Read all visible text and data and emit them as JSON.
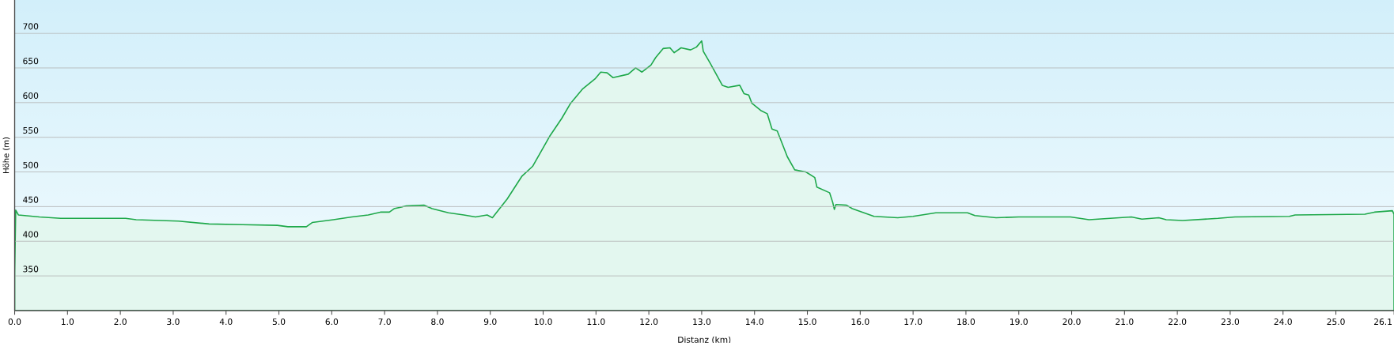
{
  "chart_data": {
    "type": "area",
    "xlabel": "Distanz  (km)",
    "ylabel": "Höhe (m)",
    "x": [
      0,
      0.02,
      0.07,
      0.47,
      0.87,
      1.44,
      2.1,
      2.3,
      3.1,
      3.68,
      4.31,
      4.97,
      5.17,
      5.52,
      5.63,
      6.03,
      6.38,
      6.69,
      6.92,
      7.09,
      7.18,
      7.41,
      7.75,
      7.9,
      8.21,
      8.5,
      8.72,
      8.94,
      9.04,
      9.32,
      9.6,
      9.8,
      10.12,
      10.35,
      10.52,
      10.75,
      10.98,
      11.09,
      11.21,
      11.32,
      11.61,
      11.75,
      11.87,
      12.04,
      12.13,
      12.27,
      12.4,
      12.48,
      12.61,
      12.79,
      12.9,
      13.0,
      13.03,
      13.16,
      13.39,
      13.5,
      13.72,
      13.8,
      13.89,
      13.95,
      14.13,
      14.24,
      14.33,
      14.43,
      14.62,
      14.76,
      14.97,
      15.14,
      15.18,
      15.42,
      15.48,
      15.51,
      15.54,
      15.74,
      15.85,
      16.26,
      16.71,
      17.0,
      17.43,
      18.03,
      18.17,
      18.57,
      19.0,
      19.98,
      20.33,
      21.13,
      21.33,
      21.65,
      21.79,
      22.1,
      22.77,
      23.09,
      24.12,
      24.23,
      25.55,
      25.73,
      26.07,
      26.1
    ],
    "series": [
      {
        "color": "#1ea84a",
        "values": [
          355,
          445,
          438,
          435,
          433,
          433,
          433,
          431,
          429,
          425,
          424,
          423,
          421,
          421,
          427,
          431,
          435,
          438,
          442,
          442,
          447,
          451,
          452,
          447,
          441,
          438,
          435,
          438,
          434,
          461,
          494,
          508,
          551,
          577,
          599,
          620,
          634,
          644,
          643,
          636,
          641,
          650,
          644,
          654,
          665,
          678,
          679,
          672,
          679,
          676,
          680,
          689,
          674,
          657,
          625,
          622,
          625,
          613,
          611,
          599,
          588,
          584,
          562,
          559,
          522,
          503,
          500,
          492,
          478,
          470,
          456,
          446,
          453,
          452,
          447,
          436,
          434,
          436,
          441,
          441,
          437,
          434,
          435,
          435,
          431,
          435,
          432,
          434,
          431,
          430,
          433,
          435,
          436,
          438,
          439,
          442,
          444,
          439
        ]
      }
    ],
    "xlim": [
      0,
      26.1
    ],
    "xticks": [
      {
        "value": 0,
        "label": "0.0"
      },
      {
        "value": 1,
        "label": "1.0"
      },
      {
        "value": 2,
        "label": "2.0"
      },
      {
        "value": 3,
        "label": "3.0"
      },
      {
        "value": 4,
        "label": "4.0"
      },
      {
        "value": 5,
        "label": "5.0"
      },
      {
        "value": 6,
        "label": "6.0"
      },
      {
        "value": 7,
        "label": "7.0"
      },
      {
        "value": 8,
        "label": "8.0"
      },
      {
        "value": 9,
        "label": "9.0"
      },
      {
        "value": 10,
        "label": "10.0"
      },
      {
        "value": 11,
        "label": "11.0"
      },
      {
        "value": 12,
        "label": "12.0"
      },
      {
        "value": 13,
        "label": "13.0"
      },
      {
        "value": 14,
        "label": "14.0"
      },
      {
        "value": 15,
        "label": "15.0"
      },
      {
        "value": 16,
        "label": "16.0"
      },
      {
        "value": 17,
        "label": "17.0"
      },
      {
        "value": 18,
        "label": "18.0"
      },
      {
        "value": 19,
        "label": "19.0"
      },
      {
        "value": 20,
        "label": "20.0"
      },
      {
        "value": 21,
        "label": "21.0"
      },
      {
        "value": 22,
        "label": "22.0"
      },
      {
        "value": 23,
        "label": "23.0"
      },
      {
        "value": 24,
        "label": "24.0"
      },
      {
        "value": 25,
        "label": "25.0"
      },
      26.1
    ],
    "ylim": [
      300,
      748
    ],
    "yticks": [
      350,
      400,
      450,
      500,
      550,
      600,
      650,
      700
    ],
    "grid": "y"
  }
}
